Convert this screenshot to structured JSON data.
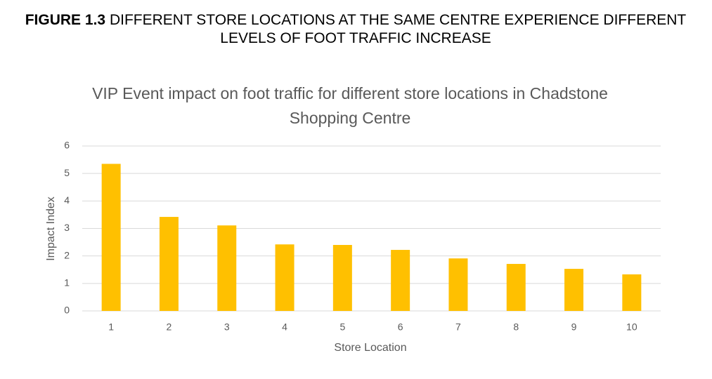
{
  "figure_label": "FIGURE 1.3",
  "figure_caption": "DIFFERENT STORE LOCATIONS AT THE SAME CENTRE EXPERIENCE DIFFERENT LEVELS OF FOOT TRAFFIC INCREASE",
  "chart_data": {
    "type": "bar",
    "title": "VIP Event impact on foot traffic for different store locations in Chadstone Shopping Centre",
    "x_label": "Store Location",
    "y_label": "Impact Index",
    "categories": [
      "1",
      "2",
      "3",
      "4",
      "5",
      "6",
      "7",
      "8",
      "9",
      "10"
    ],
    "values": [
      5.35,
      3.42,
      3.11,
      2.42,
      2.4,
      2.22,
      1.91,
      1.71,
      1.53,
      1.33
    ],
    "color": "#ffc000",
    "ylim": [
      0,
      6
    ],
    "yticks": [
      0,
      1,
      2,
      3,
      4,
      5,
      6
    ],
    "grid": true
  }
}
